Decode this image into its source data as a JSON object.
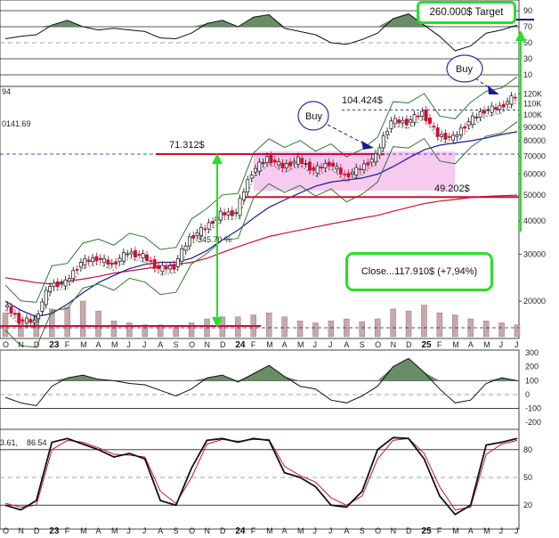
{
  "colors": {
    "up_candle": "#111111",
    "down_candle": "#cc1133",
    "ma_red": "#cc1133",
    "ma_blue": "#1a1a99",
    "bollinger": "#2d7a2d",
    "zone_fill": "#f6c4ee",
    "annotation_green": "#28e028",
    "target_line": "#1a1a99",
    "oscillator_fill": "#4e7a4e",
    "volume_bar": "#c8a8a8"
  },
  "header": {
    "left_value_top": "94",
    "left_value_mid": "0141.69",
    "stoch_left_label": "3.61,",
    "stoch_left_value": "86.54"
  },
  "annotations": {
    "target": "260.000$ Target",
    "close": "Close...117.910$ (+7,94%)",
    "buy_1": "Buy",
    "buy_2": "Buy",
    "level_71": "71.312$",
    "level_104": "104.424$",
    "level_49": "49.202$",
    "percent_gain": "345.70 %"
  },
  "chart_data": [
    {
      "type": "line",
      "panel": "relative strength index",
      "x": [
        "2022-10",
        "2022-11",
        "2022-12",
        "2023-01",
        "2023-02",
        "2023-03",
        "2023-04",
        "2023-05",
        "2023-06",
        "2023-07",
        "2023-08",
        "2023-09",
        "2023-10",
        "2023-11",
        "2023-12",
        "2024-01",
        "2024-02",
        "2024-03",
        "2024-04",
        "2024-05",
        "2024-06",
        "2024-07",
        "2024-08",
        "2024-09",
        "2024-10",
        "2024-11",
        "2024-12",
        "2025-01",
        "2025-02",
        "2025-03",
        "2025-04",
        "2025-05",
        "2025-06",
        "2025-07"
      ],
      "series": [
        {
          "values": [
            55,
            58,
            60,
            72,
            78,
            70,
            66,
            68,
            66,
            64,
            56,
            55,
            62,
            74,
            78,
            70,
            82,
            85,
            68,
            64,
            60,
            50,
            48,
            54,
            62,
            80,
            86,
            72,
            58,
            40,
            46,
            62,
            66,
            72
          ]
        }
      ],
      "ylim": [
        0,
        100
      ],
      "y_ticks": [
        10,
        30,
        50,
        70,
        90
      ]
    },
    {
      "type": "line",
      "panel": "price (log scale)",
      "log_scale": true,
      "x": [
        "2022-10",
        "2022-11",
        "2022-12",
        "2023-01",
        "2023-02",
        "2023-03",
        "2023-04",
        "2023-05",
        "2023-06",
        "2023-07",
        "2023-08",
        "2023-09",
        "2023-10",
        "2023-11",
        "2023-12",
        "2024-01",
        "2024-02",
        "2024-03",
        "2024-04",
        "2024-05",
        "2024-06",
        "2024-07",
        "2024-08",
        "2024-09",
        "2024-10",
        "2024-11",
        "2024-12",
        "2025-01",
        "2025-02",
        "2025-03",
        "2025-04",
        "2025-05",
        "2025-06",
        "2025-07"
      ],
      "x_ticks": [
        "O",
        "N",
        "D",
        "23",
        "F",
        "M",
        "A",
        "M",
        "J",
        "J",
        "A",
        "S",
        "O",
        "N",
        "D",
        "24",
        "F",
        "M",
        "A",
        "M",
        "J",
        "J",
        "A",
        "S",
        "O",
        "N",
        "D",
        "25",
        "F",
        "M",
        "A",
        "M",
        "J",
        "J"
      ],
      "y_ticks": [
        "20000",
        "30000",
        "40000",
        "50000",
        "60000",
        "70000",
        "80000",
        "90000",
        "100K",
        "110K",
        "120K"
      ],
      "series": [
        {
          "values": [
            19500,
            17000,
            16800,
            23000,
            23500,
            28000,
            29000,
            27500,
            30500,
            29500,
            26500,
            27000,
            34500,
            37800,
            42500,
            43000,
            61000,
            69000,
            64000,
            68000,
            62000,
            66000,
            59000,
            63000,
            70000,
            95000,
            94000,
            102000,
            84000,
            82000,
            94500,
            104000,
            107000,
            117910
          ]
        },
        {
          "values": [
            24500,
            24000,
            23500,
            23200,
            23800,
            24200,
            24800,
            25500,
            26000,
            26500,
            27000,
            27500,
            28000,
            29000,
            30500,
            32000,
            33500,
            35000,
            36000,
            37000,
            38000,
            39000,
            40000,
            41000,
            42000,
            43500,
            45000,
            46500,
            47500,
            48200,
            49000,
            49500,
            49800,
            50000
          ]
        },
        {
          "values": [
            20000,
            18500,
            17500,
            18000,
            19500,
            21500,
            23500,
            25000,
            26500,
            27500,
            28000,
            28000,
            29000,
            31000,
            34000,
            37000,
            41000,
            45000,
            48000,
            51000,
            54000,
            56000,
            57000,
            58000,
            60000,
            64000,
            69000,
            74000,
            77000,
            78500,
            80000,
            82000,
            84500,
            86500
          ]
        }
      ],
      "price_levels": [
        71312,
        104424,
        49202
      ],
      "highlight_zone": {
        "from": "2024-02",
        "to": "2025-03",
        "y_range": [
          52000,
          73000
        ]
      }
    },
    {
      "type": "bar",
      "panel": "volume",
      "x": [
        "2022-10",
        "2022-11",
        "2022-12",
        "2023-01",
        "2023-02",
        "2023-03",
        "2023-04",
        "2023-05",
        "2023-06",
        "2023-07",
        "2023-08",
        "2023-09",
        "2023-10",
        "2023-11",
        "2023-12",
        "2024-01",
        "2024-02",
        "2024-03",
        "2024-04",
        "2024-05",
        "2024-06",
        "2024-07",
        "2024-08",
        "2024-09",
        "2024-10",
        "2024-11",
        "2024-12",
        "2025-01",
        "2025-02",
        "2025-03",
        "2025-04",
        "2025-05",
        "2025-06",
        "2025-07"
      ],
      "series": [
        {
          "values": [
            60,
            45,
            55,
            70,
            75,
            90,
            65,
            40,
            35,
            30,
            30,
            28,
            35,
            45,
            50,
            50,
            55,
            60,
            50,
            40,
            35,
            40,
            45,
            38,
            45,
            70,
            65,
            80,
            60,
            55,
            45,
            40,
            35,
            30
          ]
        }
      ]
    },
    {
      "type": "area",
      "panel": "momentum oscillator",
      "x": [
        "2022-10",
        "2022-11",
        "2022-12",
        "2023-01",
        "2023-02",
        "2023-03",
        "2023-04",
        "2023-05",
        "2023-06",
        "2023-07",
        "2023-08",
        "2023-09",
        "2023-10",
        "2023-11",
        "2023-12",
        "2024-01",
        "2024-02",
        "2024-03",
        "2024-04",
        "2024-05",
        "2024-06",
        "2024-07",
        "2024-08",
        "2024-09",
        "2024-10",
        "2024-11",
        "2024-12",
        "2025-01",
        "2025-02",
        "2025-03",
        "2025-04",
        "2025-05",
        "2025-06",
        "2025-07"
      ],
      "series": [
        {
          "values": [
            -20,
            -60,
            -80,
            60,
            120,
            140,
            110,
            100,
            80,
            70,
            30,
            -10,
            40,
            120,
            140,
            90,
            150,
            210,
            130,
            60,
            40,
            -40,
            -60,
            -10,
            60,
            200,
            260,
            160,
            40,
            -60,
            -40,
            80,
            120,
            100
          ]
        }
      ],
      "ylim": [
        -250,
        320
      ],
      "y_ticks": [
        -200,
        -100,
        0,
        100,
        200,
        300
      ]
    },
    {
      "type": "line",
      "panel": "stochastic oscillator",
      "x": [
        "2022-10",
        "2022-11",
        "2022-12",
        "2023-01",
        "2023-02",
        "2023-03",
        "2023-04",
        "2023-05",
        "2023-06",
        "2023-07",
        "2023-08",
        "2023-09",
        "2023-10",
        "2023-11",
        "2023-12",
        "2024-01",
        "2024-02",
        "2024-03",
        "2024-04",
        "2024-05",
        "2024-06",
        "2024-07",
        "2024-08",
        "2024-09",
        "2024-10",
        "2024-11",
        "2024-12",
        "2025-01",
        "2025-02",
        "2025-03",
        "2025-04",
        "2025-05",
        "2025-06",
        "2025-07"
      ],
      "series": [
        {
          "values": [
            20,
            15,
            25,
            88,
            92,
            86,
            80,
            72,
            76,
            70,
            25,
            20,
            60,
            90,
            92,
            88,
            92,
            90,
            55,
            50,
            40,
            20,
            18,
            35,
            80,
            93,
            92,
            70,
            30,
            10,
            20,
            85,
            88,
            92
          ]
        },
        {
          "values": [
            22,
            18,
            20,
            80,
            90,
            88,
            82,
            75,
            74,
            72,
            35,
            22,
            50,
            86,
            91,
            89,
            91,
            91,
            62,
            52,
            45,
            28,
            20,
            30,
            70,
            90,
            92,
            76,
            40,
            15,
            18,
            75,
            86,
            90
          ]
        }
      ],
      "ylim": [
        0,
        100
      ],
      "y_ticks": [
        20,
        50,
        80
      ]
    }
  ]
}
